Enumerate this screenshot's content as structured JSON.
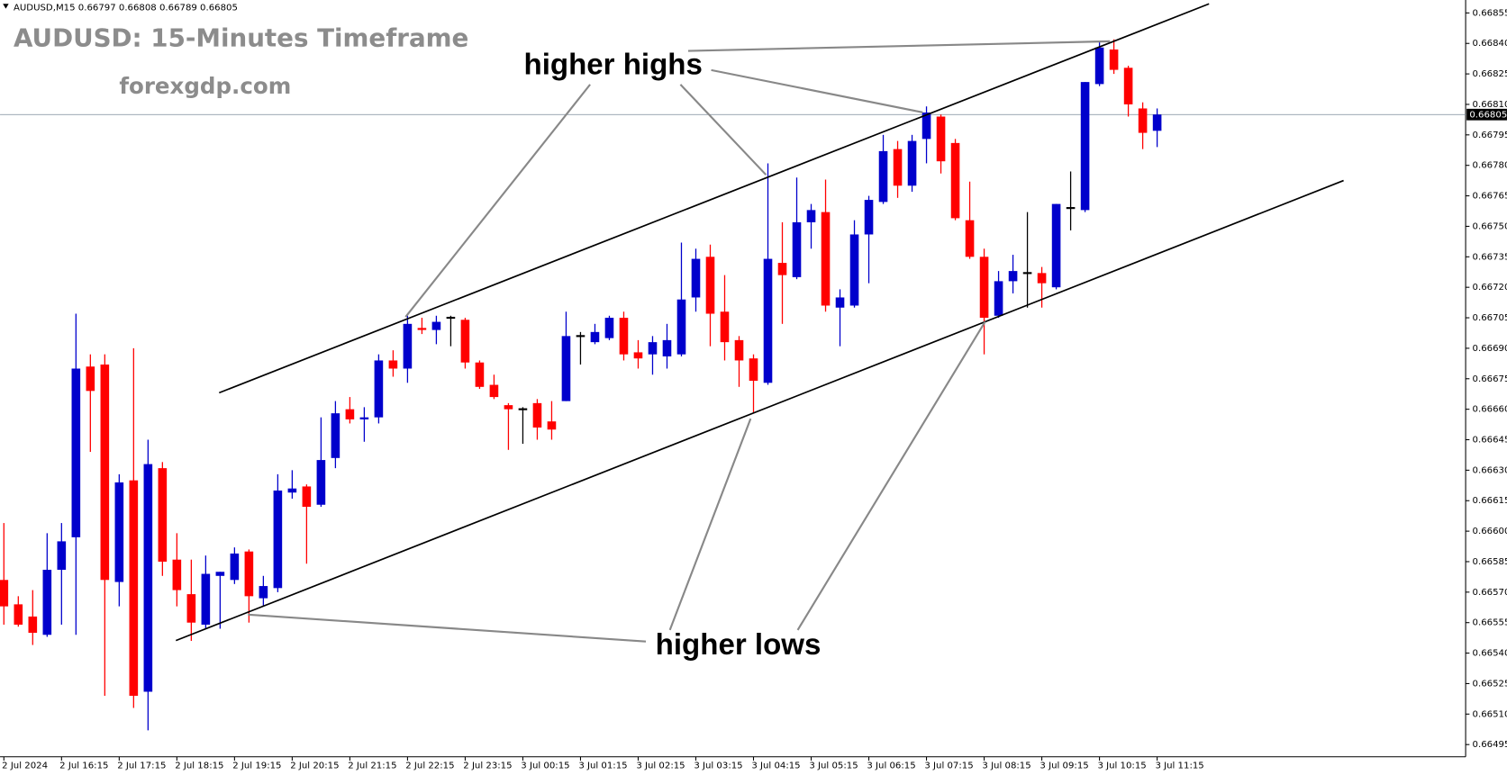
{
  "chart_data": {
    "type": "candlestick",
    "header": "AUDUSD,M15  0.66797 0.66808 0.66789 0.66805",
    "title": "AUDUSD: 15-Minutes Timeframe",
    "subtitle": "forexgdp.com",
    "annotations": [
      "higher highs",
      "higher lows"
    ],
    "up_color": "#0000cc",
    "down_color": "#ff0000",
    "doji_color": "#000000",
    "price_line": 0.66805,
    "categories": [
      "2 Jul 2024",
      null,
      null,
      null,
      "2 Jul 16:15",
      null,
      null,
      null,
      "2 Jul 17:15",
      null,
      null,
      null,
      "2 Jul 18:15",
      null,
      null,
      null,
      "2 Jul 19:15",
      null,
      null,
      null,
      "2 Jul 20:15",
      null,
      null,
      null,
      "2 Jul 21:15",
      null,
      null,
      null,
      "2 Jul 22:15",
      null,
      null,
      null,
      "2 Jul 23:15",
      null,
      null,
      null,
      "3 Jul 00:15",
      null,
      null,
      null,
      "3 Jul 01:15",
      null,
      null,
      null,
      "3 Jul 02:15",
      null,
      null,
      null,
      "3 Jul 03:15",
      null,
      null,
      null,
      "3 Jul 04:15",
      null,
      null,
      null,
      "3 Jul 05:15",
      null,
      null,
      null,
      "3 Jul 06:15",
      null,
      null,
      null,
      "3 Jul 07:15",
      null,
      null,
      null,
      "3 Jul 08:15",
      null,
      null,
      null,
      "3 Jul 09:15",
      null,
      null,
      null,
      "3 Jul 10:15",
      null,
      null,
      null,
      "3 Jul 11:15"
    ],
    "open": [
      0.66576,
      0.66564,
      0.66558,
      0.66549,
      0.66581,
      0.66597,
      0.66681,
      0.66682,
      0.66575,
      0.66625,
      0.66521,
      0.66631,
      0.66586,
      0.66569,
      0.66554,
      0.66578,
      0.66576,
      0.6659,
      0.66567,
      0.66572,
      0.66619,
      0.66622,
      0.66613,
      0.66636,
      0.6666,
      0.66655,
      0.66656,
      0.66684,
      0.6668,
      0.667,
      0.66699,
      0.66705,
      0.66704,
      0.66683,
      0.66672,
      0.66662,
      0.6666,
      0.66663,
      0.66654,
      0.66664,
      0.66696,
      0.66693,
      0.66695,
      0.66705,
      0.66688,
      0.66687,
      0.66686,
      0.66687,
      0.66715,
      0.66735,
      0.66708,
      0.66694,
      0.66685,
      0.66673,
      0.66732,
      0.66725,
      0.66752,
      0.66757,
      0.6671,
      0.66711,
      0.66746,
      0.66762,
      0.66788,
      0.6677,
      0.66793,
      0.66804,
      0.66791,
      0.66753,
      0.66735,
      0.66706,
      0.66723,
      0.66727,
      0.66727,
      0.6672,
      0.66759,
      0.66758,
      0.6682,
      0.66837,
      0.66828,
      0.66808,
      0.66797
    ],
    "high": [
      0.66604,
      0.66568,
      0.66571,
      0.66599,
      0.66604,
      0.66707,
      0.66687,
      0.66687,
      0.66628,
      0.6669,
      0.66645,
      0.66634,
      0.66599,
      0.66586,
      0.66588,
      0.6658,
      0.66592,
      0.66591,
      0.66578,
      0.66628,
      0.6663,
      0.66623,
      0.66656,
      0.66664,
      0.66666,
      0.66661,
      0.66687,
      0.66689,
      0.66706,
      0.66705,
      0.66706,
      0.66706,
      0.66705,
      0.66684,
      0.66677,
      0.66663,
      0.66661,
      0.66665,
      0.66664,
      0.66708,
      0.66698,
      0.66702,
      0.66706,
      0.66708,
      0.66694,
      0.66696,
      0.66702,
      0.66742,
      0.66739,
      0.66741,
      0.66726,
      0.66696,
      0.66687,
      0.66781,
      0.66752,
      0.66774,
      0.66761,
      0.66773,
      0.66719,
      0.66753,
      0.66765,
      0.66795,
      0.66792,
      0.66795,
      0.66809,
      0.66805,
      0.66793,
      0.66772,
      0.66739,
      0.66728,
      0.66736,
      0.66757,
      0.6673,
      0.66761,
      0.66777,
      0.66821,
      0.66841,
      0.66842,
      0.66829,
      0.66811,
      0.66808
    ],
    "low": [
      0.66554,
      0.66553,
      0.66544,
      0.66548,
      0.66554,
      0.66549,
      0.66639,
      0.66519,
      0.66563,
      0.66513,
      0.66502,
      0.66578,
      0.66563,
      0.66546,
      0.66552,
      0.66552,
      0.66574,
      0.66555,
      0.66563,
      0.6657,
      0.66616,
      0.66584,
      0.66612,
      0.66631,
      0.66653,
      0.66644,
      0.66653,
      0.66676,
      0.66673,
      0.66697,
      0.66692,
      0.66691,
      0.6668,
      0.6667,
      0.66665,
      0.6664,
      0.66643,
      0.66645,
      0.66645,
      0.66664,
      0.66682,
      0.66692,
      0.66694,
      0.66684,
      0.6668,
      0.66677,
      0.6668,
      0.66686,
      0.66708,
      0.66691,
      0.66684,
      0.66671,
      0.66658,
      0.66672,
      0.66702,
      0.66724,
      0.66739,
      0.66708,
      0.66691,
      0.6671,
      0.66722,
      0.66761,
      0.66764,
      0.66767,
      0.66781,
      0.66776,
      0.66753,
      0.66734,
      0.66687,
      0.66705,
      0.66717,
      0.6671,
      0.6671,
      0.66719,
      0.66748,
      0.66757,
      0.66819,
      0.66825,
      0.66804,
      0.66788,
      0.66789
    ],
    "close": [
      0.66563,
      0.66554,
      0.6655,
      0.66581,
      0.66595,
      0.6668,
      0.66669,
      0.66576,
      0.66624,
      0.66519,
      0.66633,
      0.66585,
      0.66571,
      0.66555,
      0.66579,
      0.6658,
      0.66589,
      0.66568,
      0.66573,
      0.6662,
      0.66621,
      0.66612,
      0.66635,
      0.66658,
      0.66655,
      0.66656,
      0.66684,
      0.6668,
      0.66702,
      0.66699,
      0.66703,
      0.66705,
      0.66683,
      0.66671,
      0.66666,
      0.6666,
      0.6666,
      0.66651,
      0.6665,
      0.66696,
      0.66696,
      0.66698,
      0.66705,
      0.66687,
      0.66685,
      0.66693,
      0.66694,
      0.66714,
      0.66734,
      0.66707,
      0.66693,
      0.66684,
      0.66674,
      0.66734,
      0.66726,
      0.66752,
      0.66758,
      0.66711,
      0.66715,
      0.66746,
      0.66763,
      0.66787,
      0.6677,
      0.66792,
      0.66806,
      0.66782,
      0.66754,
      0.66735,
      0.66705,
      0.66723,
      0.66728,
      0.66727,
      0.66722,
      0.66761,
      0.66759,
      0.66821,
      0.66838,
      0.66827,
      0.6681,
      0.66796,
      0.66805
    ],
    "ylim": [
      0.66489,
      0.66859
    ],
    "yticks": [
      {
        "value": 0.66495,
        "label": "0.66495"
      },
      {
        "value": 0.6651,
        "label": "0.66510"
      },
      {
        "value": 0.66525,
        "label": "0.66525"
      },
      {
        "value": 0.6654,
        "label": "0.66540"
      },
      {
        "value": 0.66555,
        "label": "0.66555"
      },
      {
        "value": 0.6657,
        "label": "0.66570"
      },
      {
        "value": 0.66585,
        "label": "0.66585"
      },
      {
        "value": 0.666,
        "label": "0.66600"
      },
      {
        "value": 0.66615,
        "label": "0.66615"
      },
      {
        "value": 0.6663,
        "label": "0.66630"
      },
      {
        "value": 0.66645,
        "label": "0.66645"
      },
      {
        "value": 0.6666,
        "label": "0.66660"
      },
      {
        "value": 0.66675,
        "label": "0.66675"
      },
      {
        "value": 0.6669,
        "label": "0.66690"
      },
      {
        "value": 0.66705,
        "label": "0.66705"
      },
      {
        "value": 0.6672,
        "label": "0.66720"
      },
      {
        "value": 0.66735,
        "label": "0.66735"
      },
      {
        "value": 0.6675,
        "label": "0.66750"
      },
      {
        "value": 0.66765,
        "label": "0.66765"
      },
      {
        "value": 0.6678,
        "label": "0.66780"
      },
      {
        "value": 0.66795,
        "label": "0.66795"
      },
      {
        "value": 0.6681,
        "label": "0.66810"
      },
      {
        "value": 0.66825,
        "label": "0.66825"
      },
      {
        "value": 0.6684,
        "label": "0.66840"
      },
      {
        "value": 0.66855,
        "label": "0.66855"
      }
    ]
  }
}
